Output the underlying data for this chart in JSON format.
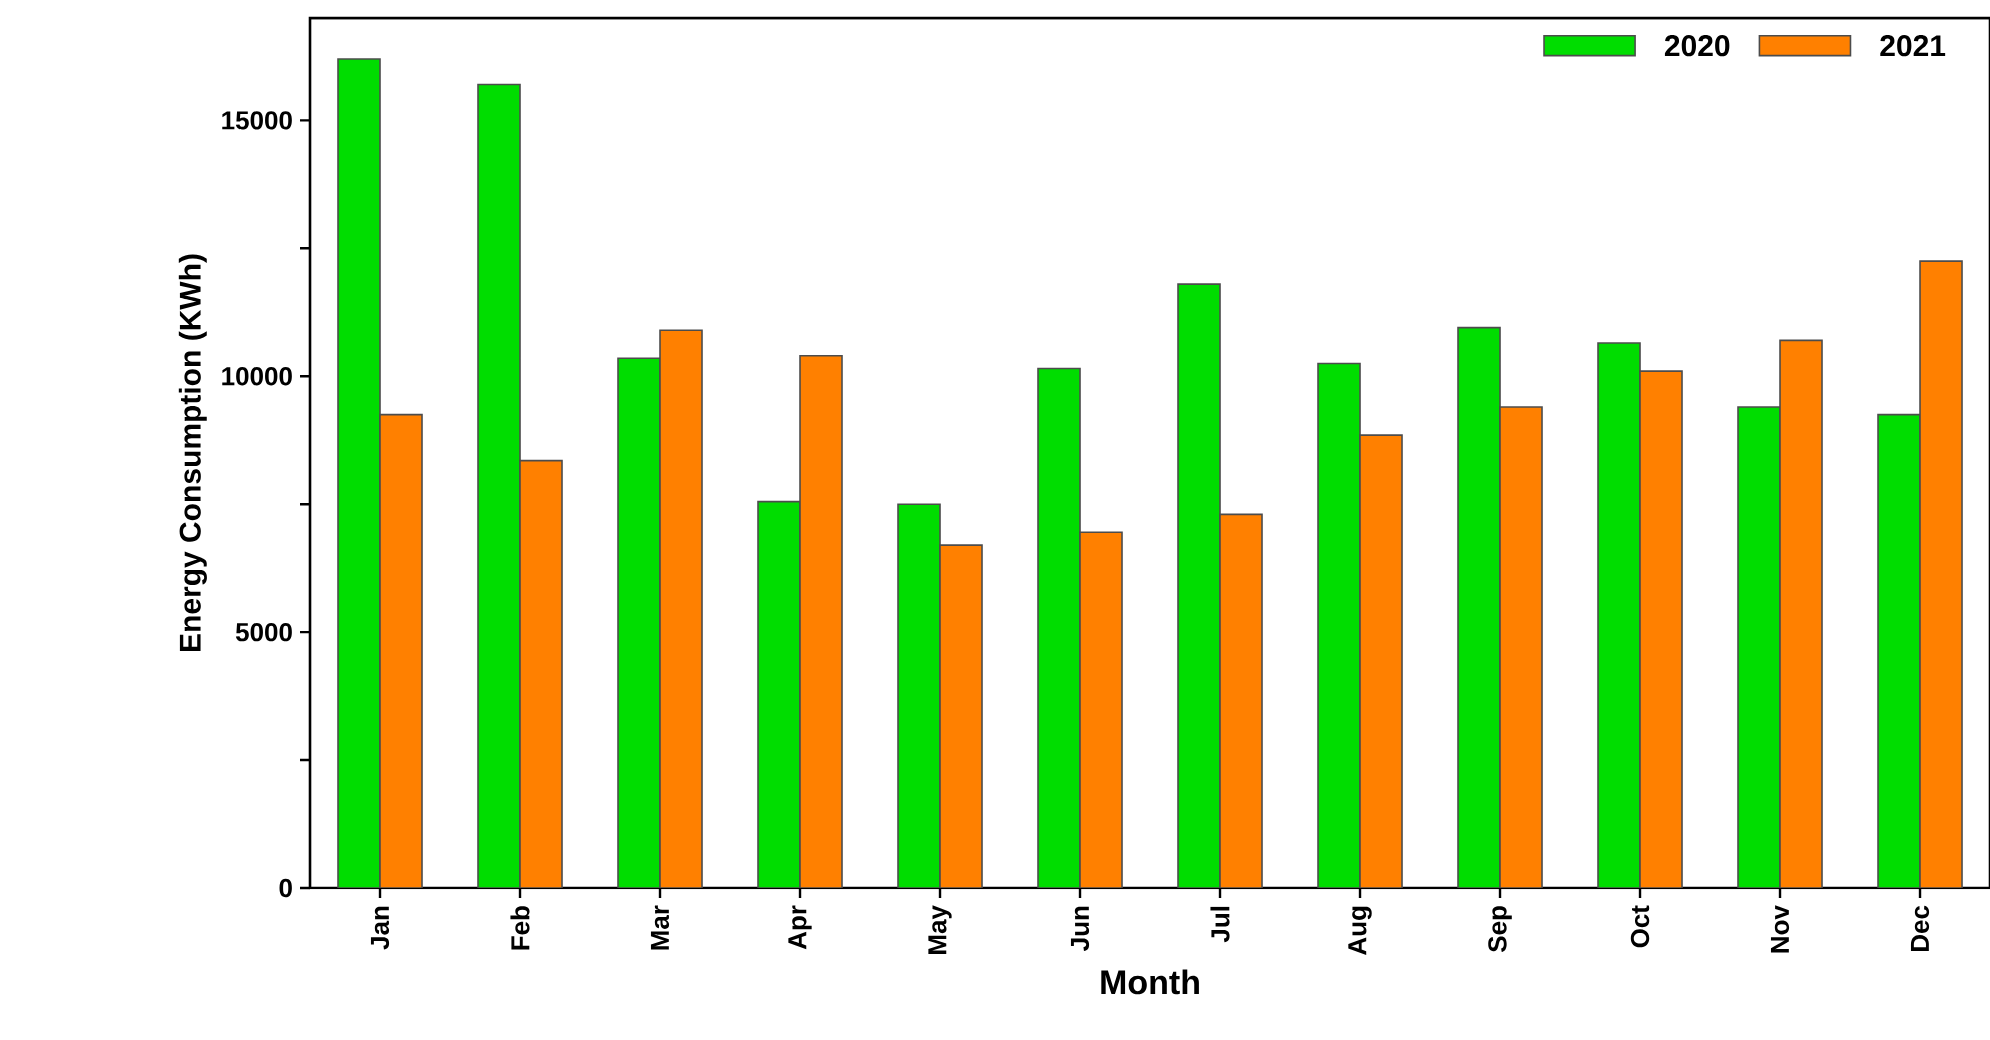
{
  "chart_data": {
    "type": "bar",
    "xlabel": "Month",
    "ylabel": "Energy Consumption (KWh)",
    "categories": [
      "Jan",
      "Feb",
      "Mar",
      "Apr",
      "May",
      "Jun",
      "Jul",
      "Aug",
      "Sep",
      "Oct",
      "Nov",
      "Dec"
    ],
    "series": [
      {
        "name": "2020",
        "color": "#00dd00",
        "values": [
          16200,
          15700,
          10350,
          7550,
          7500,
          10150,
          11800,
          10250,
          10950,
          10650,
          9400,
          9250
        ]
      },
      {
        "name": "2021",
        "color": "#ff8000",
        "values": [
          9250,
          8350,
          10900,
          10400,
          6700,
          6950,
          7300,
          8850,
          9400,
          10100,
          10700,
          12250
        ]
      }
    ],
    "ylim": [
      0,
      17000
    ],
    "yticks": [
      0,
      {
        "value": 2500,
        "label": null
      },
      5000,
      {
        "value": 7500,
        "label": null
      },
      10000,
      {
        "value": 12500,
        "label": null
      },
      15000
    ],
    "legend": "top right",
    "grid": false
  }
}
